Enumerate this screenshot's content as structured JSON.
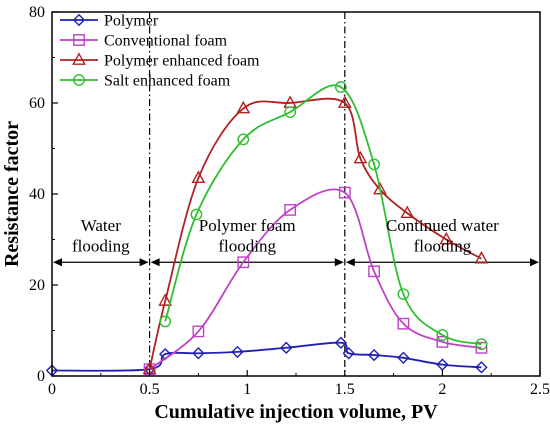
{
  "chart_data": {
    "type": "line",
    "title": "",
    "xlabel": "Cumulative injection volume, PV",
    "ylabel": "Resistance factor",
    "xlim": [
      0,
      2.5
    ],
    "ylim": [
      0,
      80
    ],
    "x_ticks": [
      0,
      0.5,
      1,
      1.5,
      2,
      2.5
    ],
    "x_tick_labels": [
      "0",
      "0.5",
      "1",
      "1.5",
      "2",
      "2.5"
    ],
    "y_ticks": [
      0,
      20,
      40,
      60,
      80
    ],
    "y_tick_labels": [
      "0",
      "20",
      "40",
      "60",
      "80"
    ],
    "grid": false,
    "legend": "top-left",
    "series": [
      {
        "name": "Polymer",
        "color": "#1f1fb4",
        "marker": "diamond",
        "points": [
          [
            0,
            1.2
          ],
          [
            0.5,
            1.5
          ],
          [
            0.58,
            4.8
          ],
          [
            0.75,
            5.0
          ],
          [
            0.95,
            5.3
          ],
          [
            1.2,
            6.2
          ],
          [
            1.48,
            7.3
          ],
          [
            1.52,
            5.0
          ],
          [
            1.65,
            4.6
          ],
          [
            1.8,
            4.0
          ],
          [
            2.0,
            2.5
          ],
          [
            2.2,
            1.9
          ]
        ]
      },
      {
        "name": "Conventional foam",
        "color": "#c040c8",
        "marker": "square",
        "points": [
          [
            0.5,
            1.5
          ],
          [
            0.75,
            9.8
          ],
          [
            0.98,
            25.0
          ],
          [
            1.22,
            36.5
          ],
          [
            1.5,
            40.3
          ],
          [
            1.65,
            23.0
          ],
          [
            1.8,
            11.5
          ],
          [
            2.0,
            7.5
          ],
          [
            2.2,
            6.2
          ]
        ]
      },
      {
        "name": "Polymer enhanced foam",
        "color": "#b22020",
        "marker": "triangle",
        "points": [
          [
            0.5,
            1.5
          ],
          [
            0.58,
            16.5
          ],
          [
            0.75,
            43.5
          ],
          [
            0.98,
            58.8
          ],
          [
            1.22,
            60.0
          ],
          [
            1.5,
            60.0
          ],
          [
            1.58,
            47.8
          ],
          [
            1.68,
            41.0
          ],
          [
            1.82,
            35.8
          ],
          [
            2.02,
            30.0
          ],
          [
            2.2,
            25.8
          ]
        ]
      },
      {
        "name": "Salt enhanced foam",
        "color": "#2fbf2f",
        "marker": "circle",
        "points": [
          [
            0.58,
            12.0
          ],
          [
            0.74,
            35.5
          ],
          [
            0.98,
            52.0
          ],
          [
            1.22,
            58.0
          ],
          [
            1.48,
            63.5
          ],
          [
            1.65,
            46.5
          ],
          [
            1.8,
            18.0
          ],
          [
            2.0,
            9.0
          ],
          [
            2.2,
            7.0
          ]
        ]
      }
    ],
    "annotations": [
      {
        "text": "Water",
        "x": 0.25,
        "y": 33
      },
      {
        "text": "flooding",
        "x": 0.25,
        "y": 28.5
      },
      {
        "text": "Polymer foam",
        "x": 1.0,
        "y": 33
      },
      {
        "text": "flooding",
        "x": 1.0,
        "y": 28.5
      },
      {
        "text": "Continued water",
        "x": 2.0,
        "y": 33
      },
      {
        "text": "flooding",
        "x": 2.0,
        "y": 28.5
      }
    ],
    "boundaries": [
      0.5,
      1.5
    ],
    "region_arrow_y": 25
  }
}
